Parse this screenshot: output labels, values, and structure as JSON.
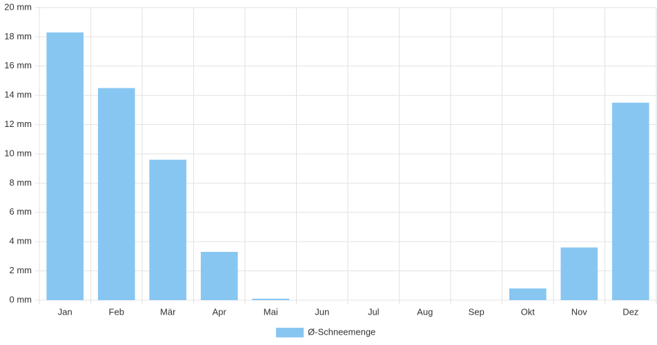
{
  "chart_data": {
    "type": "bar",
    "categories": [
      "Jan",
      "Feb",
      "Mär",
      "Apr",
      "Mai",
      "Jun",
      "Jul",
      "Aug",
      "Sep",
      "Okt",
      "Nov",
      "Dez"
    ],
    "series": [
      {
        "name": "Ø-Schneemenge",
        "color": "#88c6f2",
        "values": [
          18.3,
          14.5,
          9.6,
          3.3,
          0.1,
          0,
          0,
          0,
          0,
          0.8,
          3.6,
          13.5
        ]
      }
    ],
    "ylim": [
      0,
      20
    ],
    "yticks": [
      {
        "value": 0,
        "label": "0 mm"
      },
      {
        "value": 2,
        "label": "2 mm"
      },
      {
        "value": 4,
        "label": "4 mm"
      },
      {
        "value": 6,
        "label": "6 mm"
      },
      {
        "value": 8,
        "label": "8 mm"
      },
      {
        "value": 10,
        "label": "10 mm"
      },
      {
        "value": 12,
        "label": "12 mm"
      },
      {
        "value": 14,
        "label": "14 mm"
      },
      {
        "value": 16,
        "label": "16 mm"
      },
      {
        "value": 18,
        "label": "18 mm"
      },
      {
        "value": 20,
        "label": "20 mm"
      }
    ],
    "grid": true,
    "legend": "bottom"
  }
}
